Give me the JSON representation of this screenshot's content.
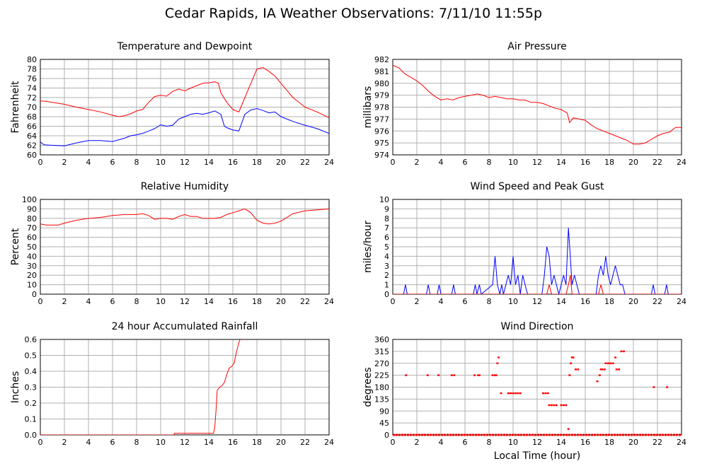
{
  "title": "Cedar Rapids, IA Weather Observations: 7/11/10 11:55p",
  "x_axis_label": "Local Time (hour)",
  "colors": {
    "red": "#ff0000",
    "blue": "#0000ff",
    "grid": "#b0b0b0",
    "frame": "#000000"
  },
  "chart_data": [
    {
      "id": "temp",
      "type": "line",
      "title": "Temperature and Dewpoint",
      "ylabel": "Fahrenheit",
      "xlim": [
        0,
        24
      ],
      "ylim": [
        60,
        80
      ],
      "xticks": [
        0,
        2,
        4,
        6,
        8,
        10,
        12,
        14,
        16,
        18,
        20,
        22,
        24
      ],
      "yticks": [
        60,
        62,
        64,
        66,
        68,
        70,
        72,
        74,
        76,
        78,
        80
      ],
      "grid": true,
      "series": [
        {
          "color": "red",
          "x": [
            0,
            0.5,
            1,
            2,
            3,
            4,
            5,
            6,
            6.5,
            7,
            7.5,
            8,
            8.5,
            9,
            9.5,
            10,
            10.5,
            11,
            11.5,
            12,
            12.5,
            13,
            13.5,
            14,
            14.5,
            14.8,
            15,
            15.5,
            16,
            16.5,
            17,
            17.5,
            18,
            18.5,
            19,
            19.5,
            20,
            21,
            22,
            23,
            24
          ],
          "y": [
            71.3,
            71.2,
            71,
            70.6,
            70,
            69.5,
            69,
            68.3,
            68,
            68.2,
            68.6,
            69.2,
            69.5,
            71,
            72.2,
            72.5,
            72.3,
            73.3,
            73.8,
            73.4,
            74,
            74.5,
            75,
            75.1,
            75.3,
            75,
            73,
            71,
            69.5,
            69,
            72,
            75,
            78,
            78.3,
            77.5,
            76.5,
            75,
            72,
            70,
            69,
            67.8
          ]
        },
        {
          "color": "blue",
          "x": [
            0,
            0.3,
            1,
            2,
            3,
            4,
            5,
            6,
            7,
            7.5,
            8,
            8.5,
            9,
            9.5,
            10,
            10.5,
            11,
            11.5,
            12,
            12.5,
            13,
            13.5,
            14,
            14.5,
            15,
            15.3,
            15.5,
            16,
            16.5,
            17,
            17.5,
            18,
            18.5,
            19,
            19.5,
            20,
            20.5,
            21,
            22,
            23,
            24
          ],
          "y": [
            62.7,
            62.1,
            62,
            61.9,
            62.5,
            63,
            63,
            62.8,
            63.5,
            64,
            64.2,
            64.5,
            65,
            65.5,
            66.3,
            66,
            66.2,
            67.5,
            68,
            68.5,
            68.7,
            68.5,
            68.8,
            69.2,
            68.5,
            66,
            65.7,
            65.2,
            65,
            68.5,
            69.4,
            69.7,
            69.3,
            68.8,
            69,
            68,
            67.5,
            67,
            66.2,
            65.5,
            64.5
          ]
        }
      ]
    },
    {
      "id": "pressure",
      "type": "line",
      "title": "Air Pressure",
      "ylabel": "millibars",
      "xlim": [
        0,
        24
      ],
      "ylim": [
        974,
        982
      ],
      "xticks": [
        0,
        2,
        4,
        6,
        8,
        10,
        12,
        14,
        16,
        18,
        20,
        22,
        24
      ],
      "yticks": [
        974,
        975,
        976,
        977,
        978,
        979,
        980,
        981,
        982
      ],
      "grid": true,
      "series": [
        {
          "color": "red",
          "x": [
            0,
            0.5,
            1,
            1.5,
            2,
            2.5,
            3,
            3.5,
            4,
            4.5,
            5,
            5.5,
            6,
            6.5,
            7,
            7.5,
            8,
            8.5,
            9,
            9.5,
            10,
            10.5,
            11,
            11.5,
            12,
            12.5,
            13,
            13.5,
            14,
            14.5,
            14.7,
            15,
            15.5,
            16,
            16.5,
            17,
            17.5,
            18,
            18.5,
            19,
            19.5,
            20,
            20.5,
            21,
            21.5,
            22,
            22.5,
            23,
            23.5,
            24
          ],
          "y": [
            981.5,
            981.3,
            980.8,
            980.5,
            980.2,
            979.8,
            979.3,
            978.9,
            978.6,
            978.7,
            978.6,
            978.8,
            978.9,
            979,
            979.1,
            979,
            978.8,
            978.9,
            978.8,
            978.7,
            978.7,
            978.6,
            978.6,
            978.4,
            978.4,
            978.3,
            978.1,
            977.9,
            977.8,
            977.5,
            976.7,
            977.1,
            977,
            976.9,
            976.5,
            976.2,
            976,
            975.8,
            975.6,
            975.4,
            975.2,
            974.9,
            974.9,
            975,
            975.3,
            975.6,
            975.8,
            975.9,
            976.3,
            976.3
          ]
        }
      ]
    },
    {
      "id": "humidity",
      "type": "line",
      "title": "Relative Humidity",
      "ylabel": "Percent",
      "xlim": [
        0,
        24
      ],
      "ylim": [
        0,
        100
      ],
      "xticks": [
        0,
        2,
        4,
        6,
        8,
        10,
        12,
        14,
        16,
        18,
        20,
        22,
        24
      ],
      "yticks": [
        0,
        10,
        20,
        30,
        40,
        50,
        60,
        70,
        80,
        90,
        100
      ],
      "grid": true,
      "series": [
        {
          "color": "red",
          "x": [
            0,
            0.5,
            1,
            1.5,
            2,
            3,
            4,
            5,
            6,
            7,
            8,
            8.5,
            9,
            9.5,
            10,
            10.5,
            11,
            11.5,
            12,
            12.5,
            13,
            13.5,
            14,
            14.5,
            15,
            15.5,
            16,
            16.5,
            17,
            17.5,
            18,
            18.5,
            19,
            19.5,
            20,
            21,
            22,
            23,
            24
          ],
          "y": [
            74,
            73,
            73,
            73,
            75,
            78,
            80,
            81,
            83,
            84,
            84,
            85,
            83,
            79,
            80,
            80,
            79,
            82,
            84,
            82,
            82,
            80,
            80,
            80,
            81,
            84,
            86,
            88,
            90,
            86,
            78,
            75,
            74,
            75,
            77,
            85,
            88,
            89,
            90
          ]
        }
      ]
    },
    {
      "id": "wind",
      "type": "line",
      "title": "Wind Speed and Peak Gust",
      "ylabel": "miles/hour",
      "xlim": [
        0,
        24
      ],
      "ylim": [
        0,
        10
      ],
      "xticks": [
        0,
        2,
        4,
        6,
        8,
        10,
        12,
        14,
        16,
        18,
        20,
        22,
        24
      ],
      "yticks": [
        0,
        1,
        2,
        3,
        4,
        5,
        6,
        7,
        8,
        9,
        10
      ],
      "grid": true,
      "series": [
        {
          "color": "blue",
          "x": [
            0,
            0.9,
            1.05,
            1.2,
            2.8,
            2.95,
            3.1,
            3.7,
            3.85,
            4,
            4.9,
            5.05,
            5.2,
            6.7,
            6.85,
            7,
            7.2,
            7.35,
            8.3,
            8.5,
            8.7,
            8.9,
            9.05,
            9.2,
            9.6,
            9.8,
            10,
            10.2,
            10.4,
            10.6,
            10.8,
            11,
            11.2,
            12.4,
            12.6,
            12.8,
            13,
            13.2,
            13.4,
            13.6,
            13.8,
            14,
            14.2,
            14.4,
            14.6,
            14.75,
            14.9,
            15.1,
            15.3,
            15.5,
            16.9,
            17.1,
            17.3,
            17.5,
            17.7,
            17.9,
            18.1,
            18.3,
            18.5,
            18.7,
            18.9,
            19.1,
            19.3,
            21.5,
            21.65,
            21.8,
            22.6,
            22.75,
            22.9,
            24
          ],
          "y": [
            0,
            0,
            1,
            0,
            0,
            1,
            0,
            0,
            1,
            0,
            0,
            1,
            0,
            0,
            1,
            0,
            1,
            0,
            1,
            4,
            1,
            0,
            1,
            0,
            2,
            1,
            4,
            1,
            2,
            0,
            2,
            1,
            0,
            0,
            2,
            5,
            4,
            1,
            2,
            1,
            0,
            1,
            2,
            1,
            7,
            4,
            1,
            2,
            1,
            0,
            0,
            2,
            3,
            2,
            4,
            2,
            1,
            2,
            3,
            2,
            1,
            1,
            0,
            0,
            1,
            0,
            0,
            1,
            0,
            0
          ]
        },
        {
          "color": "red",
          "x": [
            0,
            12.8,
            13,
            13.2,
            13.4,
            14.4,
            14.6,
            14.75,
            14.9,
            15.1,
            17.1,
            17.3,
            17.5,
            24
          ],
          "y": [
            0,
            0,
            1,
            0,
            0,
            0,
            1,
            2,
            0,
            0,
            0,
            1,
            0,
            0
          ]
        }
      ]
    },
    {
      "id": "rain",
      "type": "line",
      "title": "24 hour Accumulated Rainfall",
      "ylabel": "Inches",
      "xlim": [
        0,
        24
      ],
      "ylim": [
        0,
        0.6
      ],
      "xticks": [
        0,
        2,
        4,
        6,
        8,
        10,
        12,
        14,
        16,
        18,
        20,
        22,
        24
      ],
      "yticks": [
        0.0,
        0.1,
        0.2,
        0.3,
        0.4,
        0.5,
        0.6
      ],
      "grid": true,
      "series": [
        {
          "color": "red",
          "x": [
            0,
            11.1,
            11.15,
            14.4,
            14.5,
            14.6,
            14.7,
            14.9,
            15.1,
            15.3,
            15.5,
            15.7,
            15.9,
            16.1,
            16.3,
            16.5,
            16.7,
            16.8
          ],
          "y": [
            0,
            0,
            0.01,
            0.01,
            0.05,
            0.15,
            0.28,
            0.3,
            0.31,
            0.33,
            0.38,
            0.42,
            0.43,
            0.45,
            0.52,
            0.58,
            0.62,
            0.66
          ]
        }
      ]
    },
    {
      "id": "winddir",
      "type": "scatter",
      "title": "Wind Direction",
      "ylabel": "degrees",
      "xlim": [
        0,
        24
      ],
      "ylim": [
        0,
        360
      ],
      "xticks": [
        0,
        2,
        4,
        6,
        8,
        10,
        12,
        14,
        16,
        18,
        20,
        22,
        24
      ],
      "yticks": [
        0,
        45,
        90,
        135,
        180,
        225,
        270,
        315,
        360
      ],
      "grid": true,
      "series": [
        {
          "color": "red",
          "baseline_zero": true,
          "x": [
            1.1,
            2.9,
            3.8,
            4.9,
            5.1,
            6.8,
            7.1,
            7.2,
            8.3,
            8.5,
            8.6,
            8.7,
            8.8,
            9.0,
            9.6,
            9.8,
            10.0,
            10.2,
            10.4,
            10.6,
            12.5,
            12.7,
            12.9,
            13.0,
            13.2,
            13.4,
            13.6,
            14.0,
            14.2,
            14.4,
            14.6,
            14.7,
            14.8,
            14.9,
            15.0,
            15.2,
            15.4,
            17.0,
            17.2,
            17.3,
            17.4,
            17.6,
            17.7,
            17.9,
            18.1,
            18.3,
            18.5,
            18.6,
            18.8,
            19.0,
            19.2,
            21.7,
            22.8
          ],
          "y": [
            225,
            225,
            225,
            225,
            225,
            225,
            225,
            225,
            225,
            225,
            225,
            270,
            292,
            157,
            157,
            157,
            157,
            157,
            157,
            157,
            157,
            157,
            157,
            112,
            112,
            112,
            112,
            112,
            112,
            112,
            22,
            225,
            270,
            292,
            292,
            247,
            247,
            202,
            225,
            247,
            247,
            247,
            270,
            270,
            270,
            270,
            292,
            247,
            247,
            315,
            315,
            180,
            180
          ]
        }
      ]
    }
  ]
}
